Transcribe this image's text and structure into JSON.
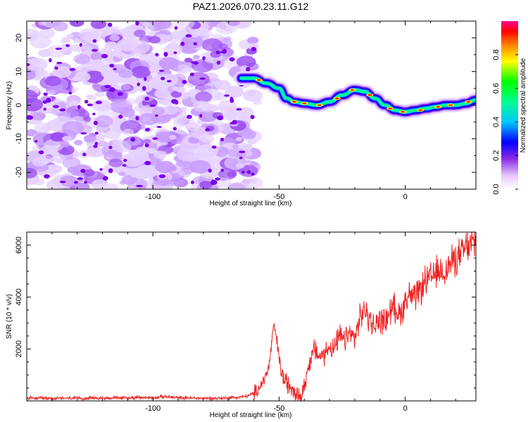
{
  "chart_data": [
    {
      "type": "heatmap",
      "title": "PAZ1.2026.070.23.11.G12",
      "xlabel": "Height of straight line (km)",
      "ylabel": "Frequency (Hz)",
      "xlim": [
        -150,
        28
      ],
      "ylim": [
        -25,
        25
      ],
      "xticks": [
        -100,
        -50,
        0
      ],
      "xtick_labels": [
        "-100",
        "-50",
        "0"
      ],
      "yticks": [
        -20,
        -10,
        0,
        10,
        20
      ],
      "ytick_labels": [
        "-20",
        "-10",
        "0",
        "10",
        "20"
      ],
      "noise_region_x": [
        -150,
        -60
      ],
      "ridge": {
        "x": [
          -65,
          -60,
          -55,
          -50,
          -47,
          -44,
          -40,
          -35,
          -30,
          -25,
          -20,
          -16,
          -12,
          -8,
          -4,
          0,
          4,
          8,
          12,
          16,
          20,
          24,
          28
        ],
        "frequency": [
          8,
          8,
          6.5,
          5,
          2,
          1,
          0.5,
          0,
          1,
          3,
          4.5,
          4,
          2,
          0,
          -1.5,
          -2,
          -1.5,
          -1,
          -0.5,
          0,
          0,
          0.5,
          1.5
        ]
      },
      "colorbar": {
        "label": "Normalized spectral amplitude",
        "range": [
          0,
          1
        ],
        "ticks": [
          0.0,
          0.2,
          0.4,
          0.6,
          0.8
        ],
        "tick_labels": [
          "0.0",
          "0.2",
          "0.4",
          "0.6",
          "0.8"
        ]
      }
    },
    {
      "type": "line",
      "xlabel": "Height of straight line (km)",
      "ylabel": "SNR (10 * v/v)",
      "xlim": [
        -150,
        28
      ],
      "ylim": [
        0,
        6500
      ],
      "xticks": [
        -100,
        -50,
        0
      ],
      "xtick_labels": [
        "-100",
        "-50",
        "0"
      ],
      "yticks": [
        2000,
        4000,
        6000
      ],
      "ytick_labels": [
        "2000",
        "4000",
        "6000"
      ],
      "series": [
        {
          "name": "SNR",
          "color": "#ee2222",
          "x": [
            -150,
            -140,
            -130,
            -120,
            -110,
            -100,
            -95,
            -90,
            -85,
            -80,
            -75,
            -70,
            -65,
            -62,
            -60,
            -58,
            -56,
            -54,
            -53,
            -52,
            -51,
            -50,
            -49,
            -48,
            -46,
            -44,
            -42,
            -41,
            -40,
            -38,
            -36,
            -34,
            -32,
            -30,
            -28,
            -26,
            -24,
            -22,
            -20,
            -18,
            -16,
            -14,
            -12,
            -10,
            -8,
            -6,
            -4,
            -2,
            0,
            2,
            4,
            6,
            8,
            10,
            12,
            14,
            16,
            18,
            20,
            22,
            24,
            26,
            28
          ],
          "values": [
            100,
            100,
            100,
            110,
            120,
            130,
            160,
            120,
            110,
            100,
            100,
            120,
            150,
            200,
            300,
            500,
            800,
            1300,
            2200,
            2900,
            2400,
            1600,
            1100,
            800,
            600,
            500,
            200,
            150,
            600,
            1500,
            2000,
            1700,
            1800,
            2100,
            2000,
            2500,
            2300,
            2600,
            2400,
            3200,
            3500,
            3100,
            2800,
            3200,
            3000,
            3500,
            3600,
            3300,
            3900,
            4100,
            3900,
            4300,
            4600,
            4700,
            4900,
            5000,
            5000,
            5300,
            5500,
            5600,
            5900,
            6000,
            6200
          ]
        }
      ]
    }
  ]
}
